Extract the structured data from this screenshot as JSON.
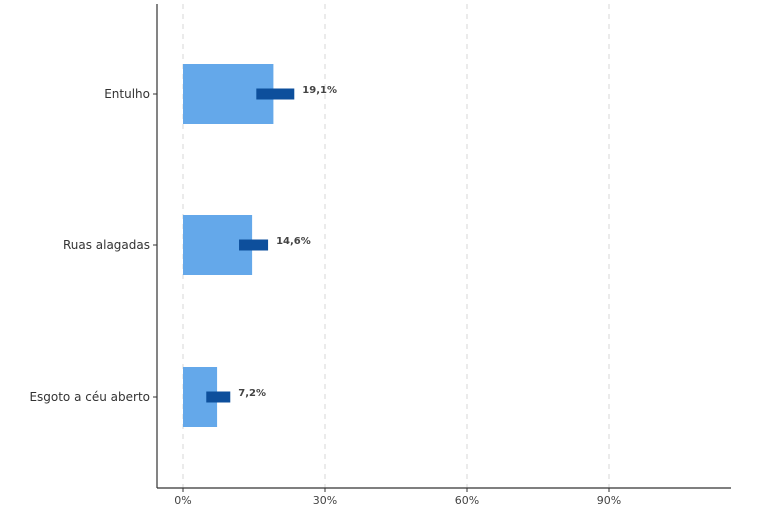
{
  "chart_data": {
    "type": "bar",
    "orientation": "horizontal",
    "categories": [
      "Entulho",
      "Ruas alagadas",
      "Esgoto a céu aberto"
    ],
    "series": [
      {
        "values": [
          19.1,
          14.6,
          7.2
        ]
      }
    ],
    "data_labels": [
      "19,1%",
      "14,6%",
      "7,2%"
    ],
    "xlim": [
      0,
      117
    ],
    "x_ticks": [
      0,
      30,
      60,
      90
    ],
    "x_tick_labels": [
      "0%",
      "30%",
      "60%",
      "90%"
    ],
    "grid": "vertical dashed",
    "legend": "none",
    "colors": {
      "bar": "#64a8ea",
      "marker": "#0d4f9c",
      "grid": "#d7d7d7",
      "axis": "#333333"
    }
  }
}
